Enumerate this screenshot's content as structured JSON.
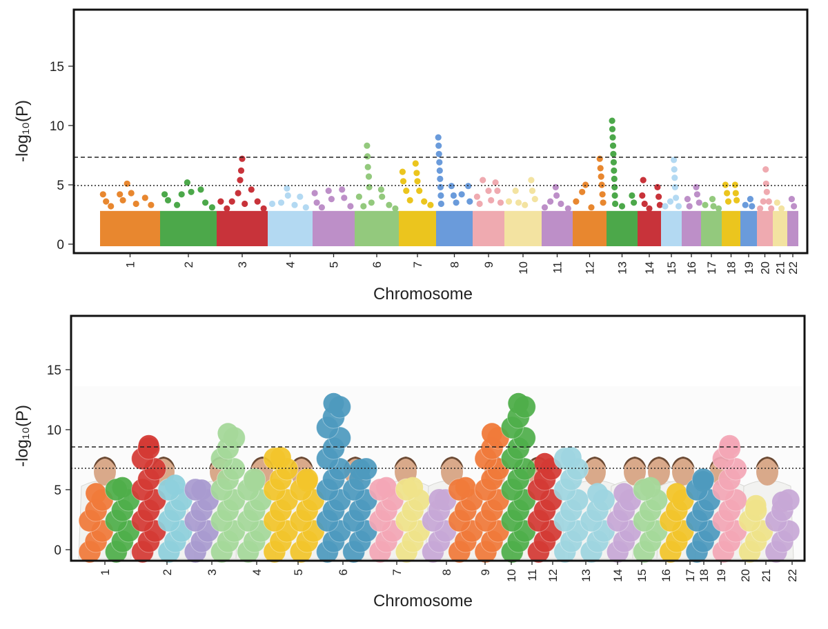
{
  "panels": [
    {
      "id": "top",
      "ylabel": "-log₁₀(P)",
      "xlabel": "Chromosome",
      "yticks": [
        "0",
        "5",
        "10",
        "15"
      ],
      "ytick_values": [
        0,
        5,
        10,
        15
      ]
    },
    {
      "id": "bottom",
      "ylabel": "-log₁₀(P)",
      "xlabel": "Chromosome",
      "yticks": [
        "0",
        "5",
        "10",
        "15"
      ],
      "ytick_values": [
        0,
        5,
        10,
        15
      ],
      "content": "photograph of people in lab coats holding colored paper circles arranged as a Manhattan plot"
    }
  ],
  "chart_data": [
    {
      "type": "scatter",
      "subtype": "manhattan",
      "title": "",
      "xlabel": "Chromosome",
      "ylabel": "-log10(P)",
      "ylim": [
        0,
        20
      ],
      "grid": false,
      "thresholds": [
        {
          "value": 7.3,
          "style": "dashed"
        },
        {
          "value": 5.0,
          "style": "dotted"
        }
      ],
      "chromosomes": [
        "1",
        "2",
        "3",
        "4",
        "5",
        "6",
        "7",
        "8",
        "9",
        "10",
        "11",
        "12",
        "13",
        "14",
        "15",
        "16",
        "17",
        "18",
        "19",
        "20",
        "21",
        "22"
      ],
      "colors": [
        "#E8872F",
        "#4CA84A",
        "#C8333A",
        "#B3D9F2",
        "#BD8FC8",
        "#93C97D",
        "#EBC51E",
        "#6A9BDB",
        "#EFAAB0",
        "#F3E3A1",
        "#BD8FC8",
        "#E8872F",
        "#4CA84A",
        "#C8333A",
        "#B3D9F2",
        "#BD8FC8",
        "#93C97D",
        "#EBC51E",
        "#6A9BDB",
        "#EFAAB0",
        "#F3E3A1",
        "#BD8FC8"
      ],
      "chromosome_peak": [
        5.1,
        5.2,
        7.2,
        4.7,
        4.6,
        8.3,
        6.8,
        9.0,
        5.4,
        5.4,
        4.8,
        7.2,
        10.4,
        5.4,
        7.1,
        4.8,
        3.8,
        5.0,
        3.8,
        6.3,
        3.5,
        3.8
      ],
      "series": [
        {
          "chromosome": "1",
          "points": [
            [
              0.05,
              4.2
            ],
            [
              0.1,
              3.6
            ],
            [
              0.18,
              3.2
            ],
            [
              0.33,
              4.2
            ],
            [
              0.38,
              3.7
            ],
            [
              0.45,
              5.1
            ],
            [
              0.52,
              4.3
            ],
            [
              0.6,
              3.4
            ],
            [
              0.75,
              3.9
            ],
            [
              0.85,
              3.3
            ]
          ]
        },
        {
          "chromosome": "2",
          "points": [
            [
              0.08,
              4.2
            ],
            [
              0.14,
              3.7
            ],
            [
              0.3,
              3.3
            ],
            [
              0.38,
              4.2
            ],
            [
              0.48,
              5.2
            ],
            [
              0.55,
              4.4
            ],
            [
              0.72,
              4.6
            ],
            [
              0.8,
              3.5
            ],
            [
              0.92,
              3.1
            ]
          ]
        },
        {
          "chromosome": "3",
          "points": [
            [
              0.08,
              3.6
            ],
            [
              0.2,
              3.0
            ],
            [
              0.3,
              3.6
            ],
            [
              0.42,
              4.3
            ],
            [
              0.46,
              5.4
            ],
            [
              0.48,
              6.2
            ],
            [
              0.5,
              7.2
            ],
            [
              0.55,
              3.4
            ],
            [
              0.68,
              4.6
            ],
            [
              0.8,
              3.6
            ],
            [
              0.92,
              3.0
            ]
          ]
        },
        {
          "chromosome": "4",
          "points": [
            [
              0.1,
              3.4
            ],
            [
              0.3,
              3.5
            ],
            [
              0.43,
              4.7
            ],
            [
              0.45,
              4.1
            ],
            [
              0.6,
              3.3
            ],
            [
              0.72,
              4.0
            ],
            [
              0.85,
              3.1
            ]
          ]
        },
        {
          "chromosome": "5",
          "points": [
            [
              0.05,
              4.3
            ],
            [
              0.1,
              3.5
            ],
            [
              0.22,
              3.1
            ],
            [
              0.38,
              4.5
            ],
            [
              0.45,
              3.8
            ],
            [
              0.7,
              4.6
            ],
            [
              0.75,
              3.9
            ],
            [
              0.9,
              3.2
            ]
          ]
        },
        {
          "chromosome": "6",
          "points": [
            [
              0.1,
              4.0
            ],
            [
              0.2,
              3.2
            ],
            [
              0.28,
              8.3
            ],
            [
              0.29,
              7.4
            ],
            [
              0.3,
              6.5
            ],
            [
              0.32,
              5.7
            ],
            [
              0.33,
              4.8
            ],
            [
              0.38,
              3.5
            ],
            [
              0.6,
              4.6
            ],
            [
              0.62,
              4.0
            ],
            [
              0.78,
              3.3
            ],
            [
              0.92,
              3.0
            ]
          ]
        },
        {
          "chromosome": "7",
          "points": [
            [
              0.1,
              6.1
            ],
            [
              0.12,
              5.3
            ],
            [
              0.2,
              4.5
            ],
            [
              0.3,
              3.7
            ],
            [
              0.45,
              6.8
            ],
            [
              0.48,
              6.0
            ],
            [
              0.5,
              5.3
            ],
            [
              0.55,
              4.5
            ],
            [
              0.68,
              3.6
            ],
            [
              0.85,
              3.3
            ]
          ]
        },
        {
          "chromosome": "8",
          "points": [
            [
              0.06,
              9.0
            ],
            [
              0.07,
              8.3
            ],
            [
              0.08,
              7.6
            ],
            [
              0.09,
              6.9
            ],
            [
              0.1,
              6.2
            ],
            [
              0.11,
              5.5
            ],
            [
              0.12,
              4.8
            ],
            [
              0.13,
              4.1
            ],
            [
              0.14,
              3.4
            ],
            [
              0.42,
              4.9
            ],
            [
              0.48,
              4.1
            ],
            [
              0.55,
              3.5
            ],
            [
              0.7,
              4.2
            ],
            [
              0.88,
              4.9
            ],
            [
              0.92,
              3.6
            ]
          ]
        },
        {
          "chromosome": "9",
          "points": [
            [
              0.14,
              4.0
            ],
            [
              0.22,
              3.4
            ],
            [
              0.32,
              5.4
            ],
            [
              0.5,
              4.5
            ],
            [
              0.58,
              3.7
            ],
            [
              0.72,
              5.2
            ],
            [
              0.78,
              4.5
            ],
            [
              0.88,
              3.5
            ]
          ]
        },
        {
          "chromosome": "10",
          "points": [
            [
              0.12,
              3.6
            ],
            [
              0.3,
              4.5
            ],
            [
              0.38,
              3.5
            ],
            [
              0.55,
              3.3
            ],
            [
              0.72,
              5.4
            ],
            [
              0.75,
              4.5
            ],
            [
              0.82,
              3.8
            ]
          ]
        },
        {
          "chromosome": "11",
          "points": [
            [
              0.1,
              3.1
            ],
            [
              0.28,
              3.6
            ],
            [
              0.45,
              4.8
            ],
            [
              0.48,
              4.1
            ],
            [
              0.62,
              3.4
            ],
            [
              0.85,
              3.0
            ]
          ]
        },
        {
          "chromosome": "12",
          "points": [
            [
              0.1,
              3.6
            ],
            [
              0.28,
              4.4
            ],
            [
              0.38,
              5.0
            ],
            [
              0.55,
              3.1
            ],
            [
              0.8,
              7.2
            ],
            [
              0.82,
              6.4
            ],
            [
              0.84,
              5.7
            ],
            [
              0.86,
              5.0
            ],
            [
              0.88,
              4.2
            ],
            [
              0.9,
              3.5
            ]
          ]
        },
        {
          "chromosome": "13",
          "points": [
            [
              0.18,
              10.4
            ],
            [
              0.19,
              9.7
            ],
            [
              0.2,
              9.0
            ],
            [
              0.21,
              8.3
            ],
            [
              0.22,
              7.6
            ],
            [
              0.23,
              6.9
            ],
            [
              0.24,
              6.2
            ],
            [
              0.25,
              5.5
            ],
            [
              0.26,
              4.8
            ],
            [
              0.27,
              4.1
            ],
            [
              0.28,
              3.4
            ],
            [
              0.5,
              3.2
            ],
            [
              0.82,
              4.1
            ],
            [
              0.88,
              3.5
            ]
          ]
        },
        {
          "chromosome": "14",
          "points": [
            [
              0.2,
              4.1
            ],
            [
              0.24,
              5.4
            ],
            [
              0.3,
              3.4
            ],
            [
              0.5,
              3.0
            ],
            [
              0.85,
              4.8
            ],
            [
              0.9,
              4.0
            ],
            [
              0.95,
              3.3
            ]
          ]
        },
        {
          "chromosome": "15",
          "points": [
            [
              0.2,
              3.2
            ],
            [
              0.45,
              3.6
            ],
            [
              0.62,
              7.1
            ],
            [
              0.64,
              6.3
            ],
            [
              0.66,
              5.6
            ],
            [
              0.68,
              4.8
            ],
            [
              0.72,
              3.9
            ],
            [
              0.85,
              3.2
            ]
          ]
        },
        {
          "chromosome": "16",
          "points": [
            [
              0.3,
              3.8
            ],
            [
              0.4,
              3.2
            ],
            [
              0.75,
              4.8
            ],
            [
              0.8,
              4.2
            ],
            [
              0.9,
              3.5
            ]
          ]
        },
        {
          "chromosome": "17",
          "points": [
            [
              0.2,
              3.3
            ],
            [
              0.55,
              3.8
            ],
            [
              0.6,
              3.2
            ],
            [
              0.85,
              3.0
            ]
          ]
        },
        {
          "chromosome": "18",
          "points": [
            [
              0.2,
              5.0
            ],
            [
              0.28,
              4.3
            ],
            [
              0.35,
              3.6
            ],
            [
              0.72,
              5.0
            ],
            [
              0.75,
              4.3
            ],
            [
              0.8,
              3.7
            ]
          ]
        },
        {
          "chromosome": "19",
          "points": [
            [
              0.3,
              3.3
            ],
            [
              0.6,
              3.8
            ],
            [
              0.7,
              3.2
            ]
          ]
        },
        {
          "chromosome": "20",
          "points": [
            [
              0.2,
              3.0
            ],
            [
              0.4,
              3.6
            ],
            [
              0.55,
              6.3
            ],
            [
              0.58,
              5.1
            ],
            [
              0.62,
              4.4
            ],
            [
              0.75,
              3.6
            ],
            [
              0.9,
              3.0
            ]
          ]
        },
        {
          "chromosome": "21",
          "points": [
            [
              0.3,
              3.5
            ],
            [
              0.6,
              3.0
            ]
          ]
        },
        {
          "chromosome": "22",
          "points": [
            [
              0.4,
              3.8
            ],
            [
              0.6,
              3.2
            ]
          ]
        }
      ]
    }
  ],
  "photo_columns": [
    {
      "color": "#F07A3A",
      "peak": 5.5
    },
    {
      "color": "#4FAE4A",
      "peak": 6.0
    },
    {
      "color": "#D43A35",
      "peak": 9.5
    },
    {
      "color": "#8ED0DC",
      "peak": 6.2
    },
    {
      "color": "#A99BD0",
      "peak": 5.8
    },
    {
      "color": "#A5D89A",
      "peak": 10.5
    },
    {
      "color": "#A5D89A",
      "peak": 6.5
    },
    {
      "color": "#F2C52B",
      "peak": 8.5
    },
    {
      "color": "#F2C52B",
      "peak": 6.5
    },
    {
      "color": "#4E9ABE",
      "peak": 13.0
    },
    {
      "color": "#4E9ABE",
      "peak": 7.5
    },
    {
      "color": "#F3A7B6",
      "peak": 6.0
    },
    {
      "color": "#EFE38A",
      "peak": 6.0
    },
    {
      "color": "#C7A8D6",
      "peak": 5.0
    },
    {
      "color": "#F07A3A",
      "peak": 6.0
    },
    {
      "color": "#F07A3A",
      "peak": 10.5
    },
    {
      "color": "#4FAE4A",
      "peak": 13.0
    },
    {
      "color": "#D43A35",
      "peak": 8.0
    },
    {
      "color": "#9ED5E0",
      "peak": 8.5
    },
    {
      "color": "#9ED5E0",
      "peak": 5.5
    },
    {
      "color": "#C7A8D6",
      "peak": 5.5
    },
    {
      "color": "#A5D89A",
      "peak": 6.0
    },
    {
      "color": "#F2C52B",
      "peak": 5.5
    },
    {
      "color": "#4E9ABE",
      "peak": 6.5
    },
    {
      "color": "#F3A7B6",
      "peak": 9.5
    },
    {
      "color": "#EFE38A",
      "peak": 4.5
    },
    {
      "color": "#C7A8D6",
      "peak": 4.8
    }
  ]
}
